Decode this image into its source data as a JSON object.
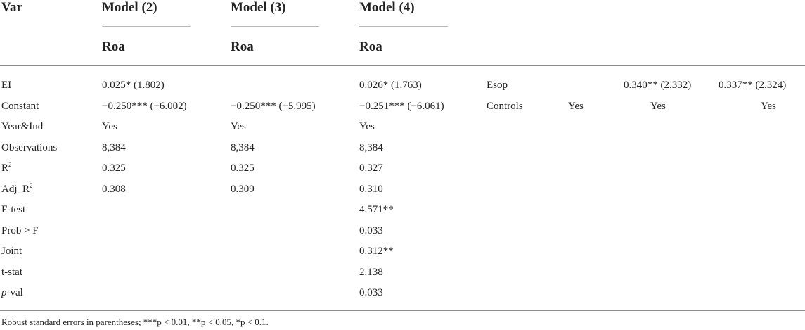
{
  "headers": {
    "var": "Var",
    "model2": "Model (2)",
    "model3": "Model (3)",
    "model4": "Model (4)",
    "dep2": "Roa",
    "dep3": "Roa",
    "dep4": "Roa"
  },
  "rows": [
    {
      "label": "EI",
      "m2": "0.025* (1.802)",
      "m3": "",
      "m4": "0.026* (1.763)"
    },
    {
      "label": "Constant",
      "m2": "−0.250*** (−6.002)",
      "m3": "−0.250*** (−5.995)",
      "m4": "−0.251*** (−6.061)"
    },
    {
      "label": "Year&Ind",
      "m2": "Yes",
      "m3": "Yes",
      "m4": "Yes"
    },
    {
      "label": "Observations",
      "m2": "8,384",
      "m3": "8,384",
      "m4": "8,384"
    },
    {
      "label_main": "R",
      "label_sup": "2",
      "m2": "0.325",
      "m3": "0.325",
      "m4": "0.327"
    },
    {
      "label_main": "Adj_R",
      "label_sup": "2",
      "m2": "0.308",
      "m3": "0.309",
      "m4": "0.310"
    },
    {
      "label": "F-test",
      "m2": "",
      "m3": "",
      "m4": "4.571**"
    },
    {
      "label": "Prob > F",
      "m2": "",
      "m3": "",
      "m4": "0.033"
    },
    {
      "label": "Joint",
      "m2": "",
      "m3": "",
      "m4": "0.312**"
    },
    {
      "label": "t-stat",
      "m2": "",
      "m3": "",
      "m4": "2.138"
    },
    {
      "label_italic": "p",
      "label_rest": "-val",
      "m2": "",
      "m3": "",
      "m4": "0.033"
    }
  ],
  "extra": {
    "esop_label": "Esop",
    "esop_c1": "0.340** (2.332)",
    "esop_c2": "0.337** (2.324)",
    "controls_label": "Controls",
    "controls_c0": "Yes",
    "controls_c1": "Yes",
    "controls_c2": "Yes"
  },
  "footnote": "Robust standard errors in parentheses; ***p < 0.01, **p < 0.05, *p < 0.1."
}
